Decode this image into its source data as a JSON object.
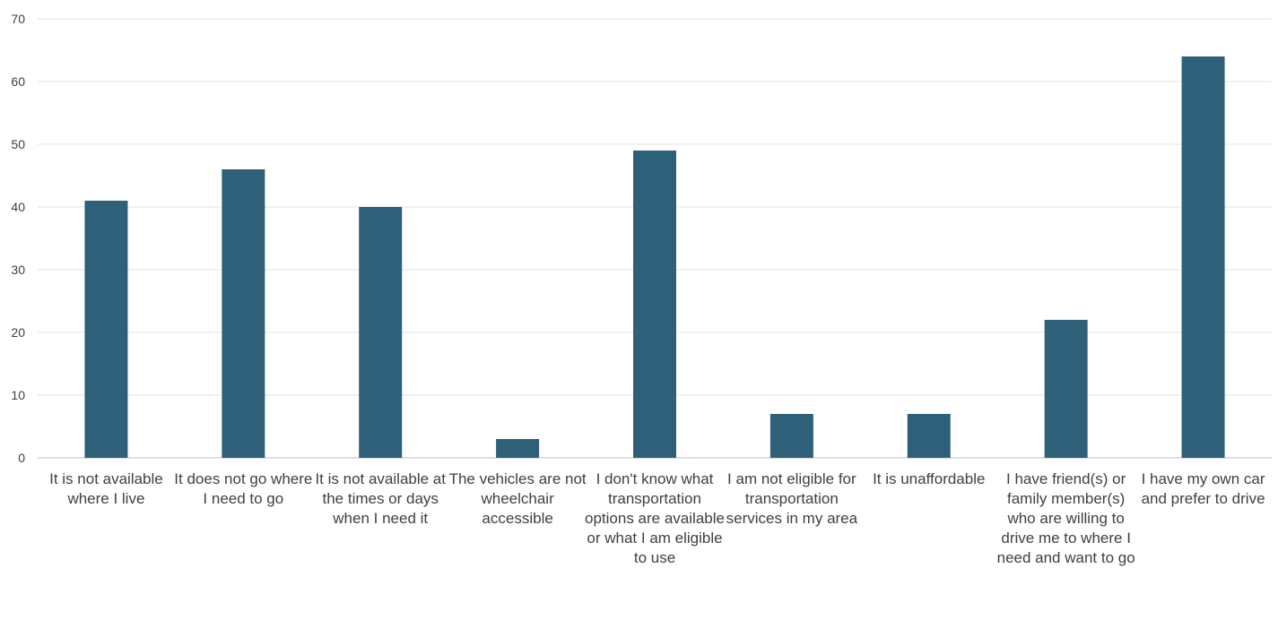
{
  "chart_data": {
    "type": "bar",
    "title": "",
    "xlabel": "",
    "ylabel": "",
    "ylim": [
      0,
      70
    ],
    "yticks": [
      0,
      10,
      20,
      30,
      40,
      50,
      60,
      70
    ],
    "grid": true,
    "legend": "none",
    "bar_color": "#2e6079",
    "categories": [
      "It is not available where I live",
      "It does not go where I need to go",
      "It is not available at the times or days when I need it",
      "The vehicles are not wheelchair accessible",
      "I don't know what transportation options are available or what I am eligible to use",
      "I am not eligible for transportation services in my area",
      "It is unaffordable",
      "I have friend(s) or family member(s) who are willing to drive me to where I need and want to go",
      "I have my own car and prefer to drive"
    ],
    "values": [
      41,
      46,
      40,
      3,
      49,
      7,
      7,
      22,
      64
    ]
  }
}
